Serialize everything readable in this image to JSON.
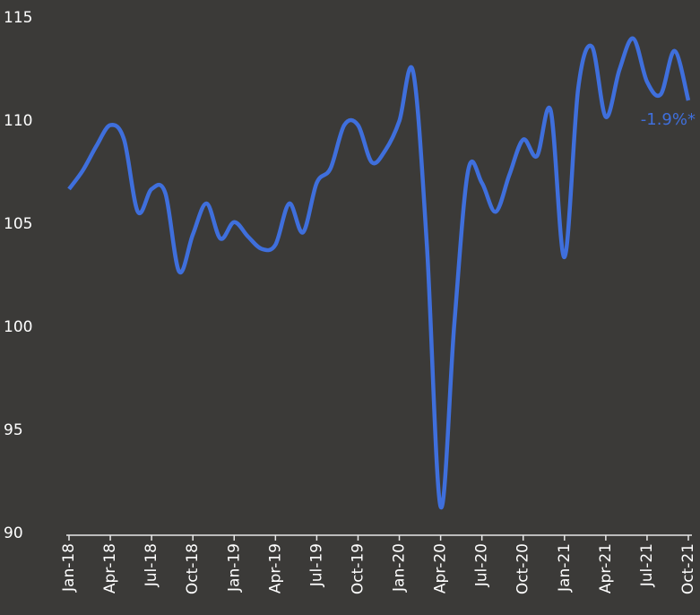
{
  "chart_data": {
    "type": "line",
    "categories": [
      "Jan-18",
      null,
      null,
      "Apr-18",
      null,
      null,
      "Jul-18",
      null,
      null,
      "Oct-18",
      null,
      null,
      "Jan-19",
      null,
      null,
      "Apr-19",
      null,
      null,
      "Jul-19",
      null,
      null,
      "Oct-19",
      null,
      null,
      "Jan-20",
      null,
      null,
      "Apr-20",
      null,
      null,
      "Jul-20",
      null,
      null,
      "Oct-20",
      null,
      null,
      "Jan-21",
      null,
      null,
      "Apr-21",
      null,
      null,
      "Jul-21",
      null,
      null,
      "Oct-21"
    ],
    "series": [
      {
        "color": "#3f6fdc",
        "values": [
          106.7,
          107.6,
          108.8,
          109.8,
          109.1,
          105.6,
          106.7,
          106.5,
          102.7,
          104.5,
          106.0,
          104.3,
          105.1,
          104.4,
          103.8,
          104.0,
          106.0,
          104.6,
          107.0,
          107.7,
          109.8,
          109.8,
          108.0,
          108.6,
          110.0,
          112.4,
          104.0,
          91.3,
          100.2,
          107.6,
          107.0,
          105.6,
          107.4,
          109.1,
          108.3,
          110.5,
          103.4,
          111.6,
          113.6,
          110.2,
          112.5,
          114.0,
          111.9,
          111.3,
          113.4,
          111.0
        ]
      }
    ],
    "annotation": "-1.9%*",
    "ylim": [
      90,
      115
    ],
    "yticks": [
      90,
      95,
      100,
      105,
      110,
      115
    ]
  }
}
